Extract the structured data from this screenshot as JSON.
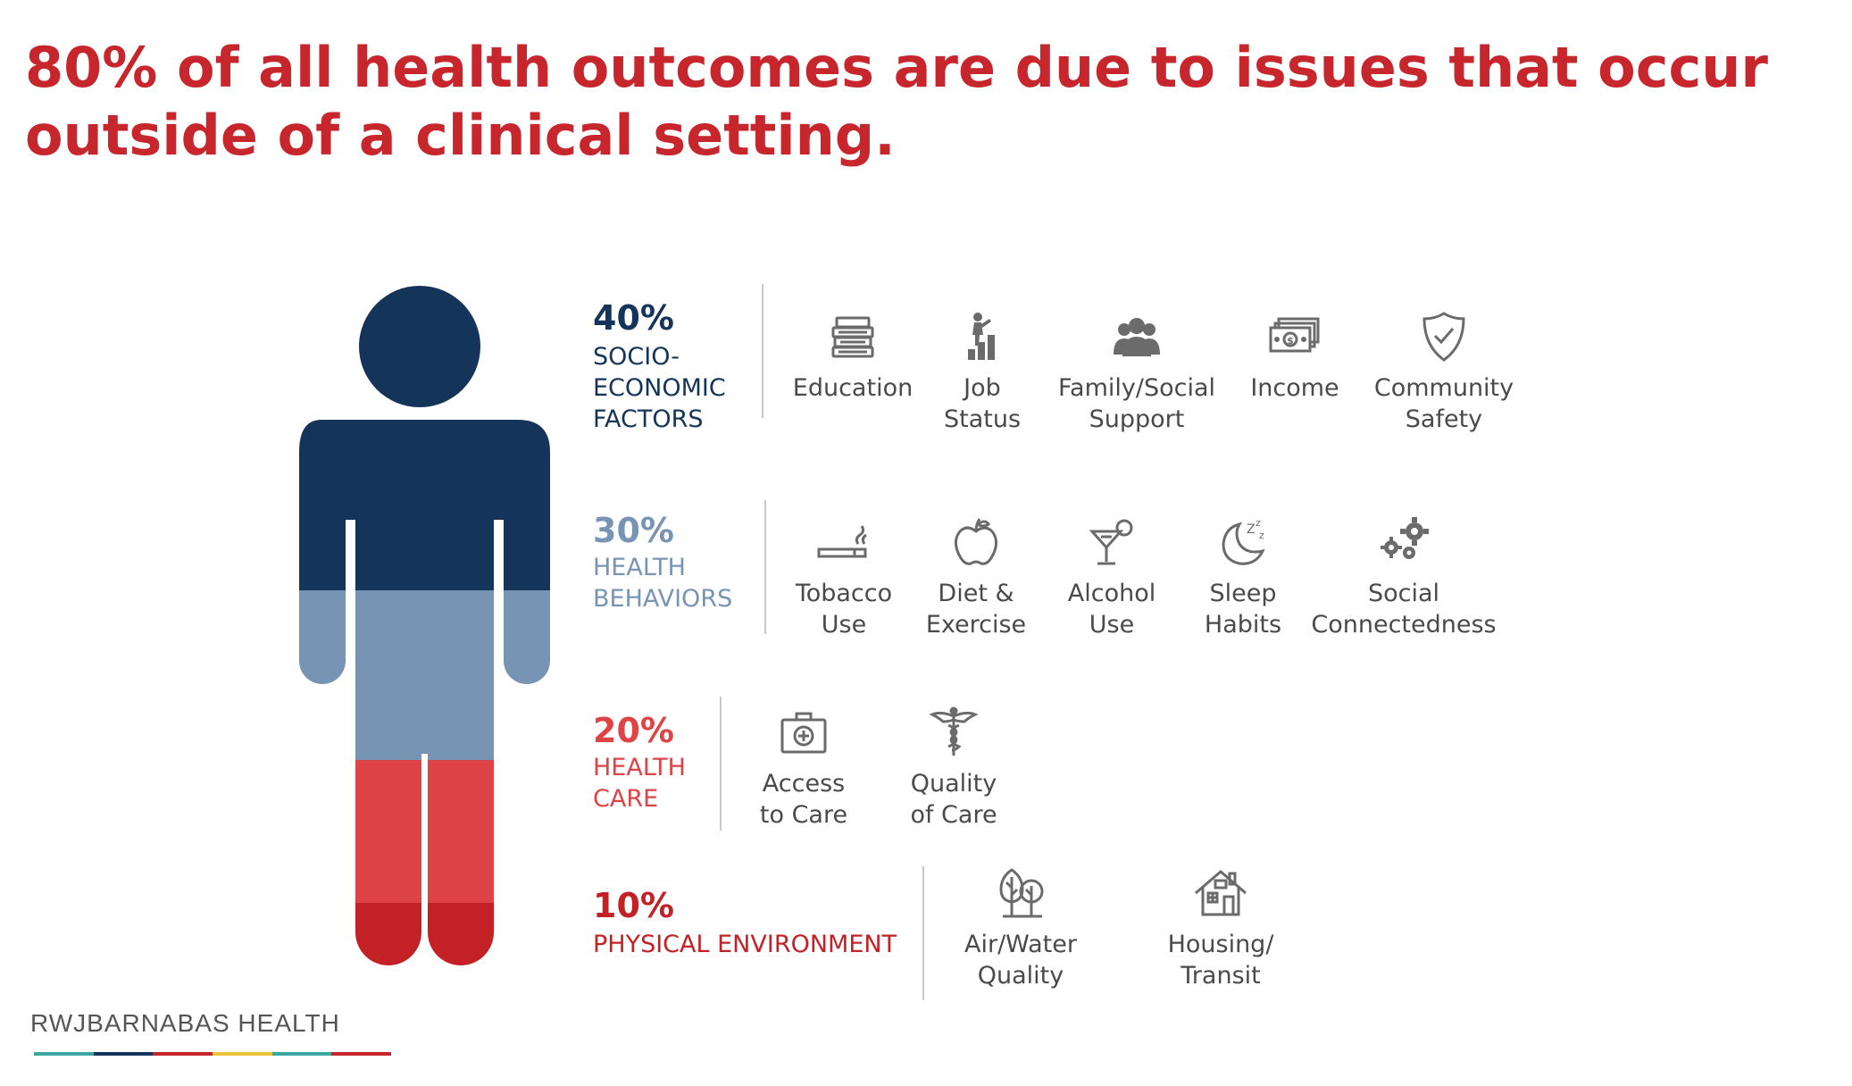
{
  "headline": "80% of all health outcomes are due to issues that occur outside of a clinical setting.",
  "colors": {
    "headline": "#c7262c",
    "socioeconomic": "#15345a",
    "behaviors": "#7894b4",
    "healthcare": "#de4345",
    "environment": "#c32126",
    "icon": "#6b6b6b"
  },
  "categories": [
    {
      "percent": "40%",
      "label": "SOCIO-\nECONOMIC\nFACTORS",
      "factors": [
        {
          "label": "Education",
          "icon": "books-icon"
        },
        {
          "label": "Job\nStatus",
          "icon": "career-ladder-icon"
        },
        {
          "label": "Family/Social\nSupport",
          "icon": "people-group-icon"
        },
        {
          "label": "Income",
          "icon": "money-icon"
        },
        {
          "label": "Community\nSafety",
          "icon": "shield-check-icon"
        }
      ]
    },
    {
      "percent": "30%",
      "label": "HEALTH\nBEHAVIORS",
      "factors": [
        {
          "label": "Tobacco\nUse",
          "icon": "cigarette-icon"
        },
        {
          "label": "Diet &\nExercise",
          "icon": "apple-icon"
        },
        {
          "label": "Alcohol\nUse",
          "icon": "cocktail-icon"
        },
        {
          "label": "Sleep\nHabits",
          "icon": "moon-zzz-icon"
        },
        {
          "label": "Social\nConnectedness",
          "icon": "gears-icon"
        }
      ]
    },
    {
      "percent": "20%",
      "label": "HEALTH\nCARE",
      "factors": [
        {
          "label": "Access\nto Care",
          "icon": "medical-kit-icon"
        },
        {
          "label": "Quality\nof Care",
          "icon": "caduceus-icon"
        }
      ]
    },
    {
      "percent": "10%",
      "label": "PHYSICAL ENVIRONMENT",
      "factors": [
        {
          "label": "Air/Water\nQuality",
          "icon": "trees-icon"
        },
        {
          "label": "Housing/ Transit",
          "icon": "house-icon"
        }
      ]
    }
  ],
  "brand": {
    "name": "RWJBARNABAS HEALTH",
    "bar_colors": [
      "#3aa8a0",
      "#15345a",
      "#c7262c",
      "#e8c43a",
      "#3aa8a0",
      "#c7262c"
    ]
  }
}
